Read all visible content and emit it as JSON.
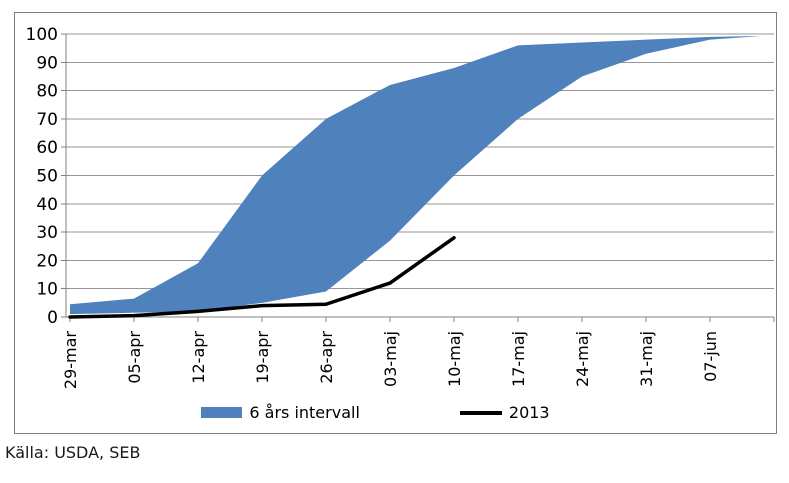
{
  "source_note": "Källa: USDA, SEB",
  "legend": [
    {
      "label": "6 års intervall",
      "swatch": "area",
      "color": "#4F81BD"
    },
    {
      "label": "2013",
      "swatch": "line",
      "color": "#000000"
    }
  ],
  "colors": {
    "band": "#4F81BD",
    "line_2013": "#000000",
    "grid": "#969696",
    "axis": "#808080",
    "border": "#808080",
    "text": "#000000"
  },
  "y_axis": {
    "min": 0,
    "max": 100,
    "step": 10,
    "labels": [
      "0",
      "10",
      "20",
      "30",
      "40",
      "50",
      "60",
      "70",
      "80",
      "90",
      "100"
    ]
  },
  "chart_data": {
    "type": "area",
    "title": "",
    "xlabel": "",
    "ylabel": "",
    "categories": [
      "29-mar",
      "05-apr",
      "12-apr",
      "19-apr",
      "26-apr",
      "03-maj",
      "10-maj",
      "17-maj",
      "24-maj",
      "31-maj",
      "07-jun"
    ],
    "series": [
      {
        "name": "6 års intervall",
        "type": "band",
        "upper": [
          4.5,
          6.5,
          19,
          50,
          70,
          82,
          88,
          96,
          97,
          98,
          99
        ],
        "lower": [
          1,
          1.5,
          2,
          5,
          9,
          27,
          50,
          70,
          85,
          93,
          98
        ]
      },
      {
        "name": "2013",
        "type": "line",
        "values": [
          0,
          0.5,
          2,
          4,
          4.5,
          12,
          28
        ]
      }
    ],
    "ylim": [
      0,
      100
    ],
    "ytick_interval": 10,
    "grid": "horizontal",
    "legend_position": "bottom",
    "x_labels_rotation": -90,
    "source": "Källa: USDA, SEB"
  }
}
